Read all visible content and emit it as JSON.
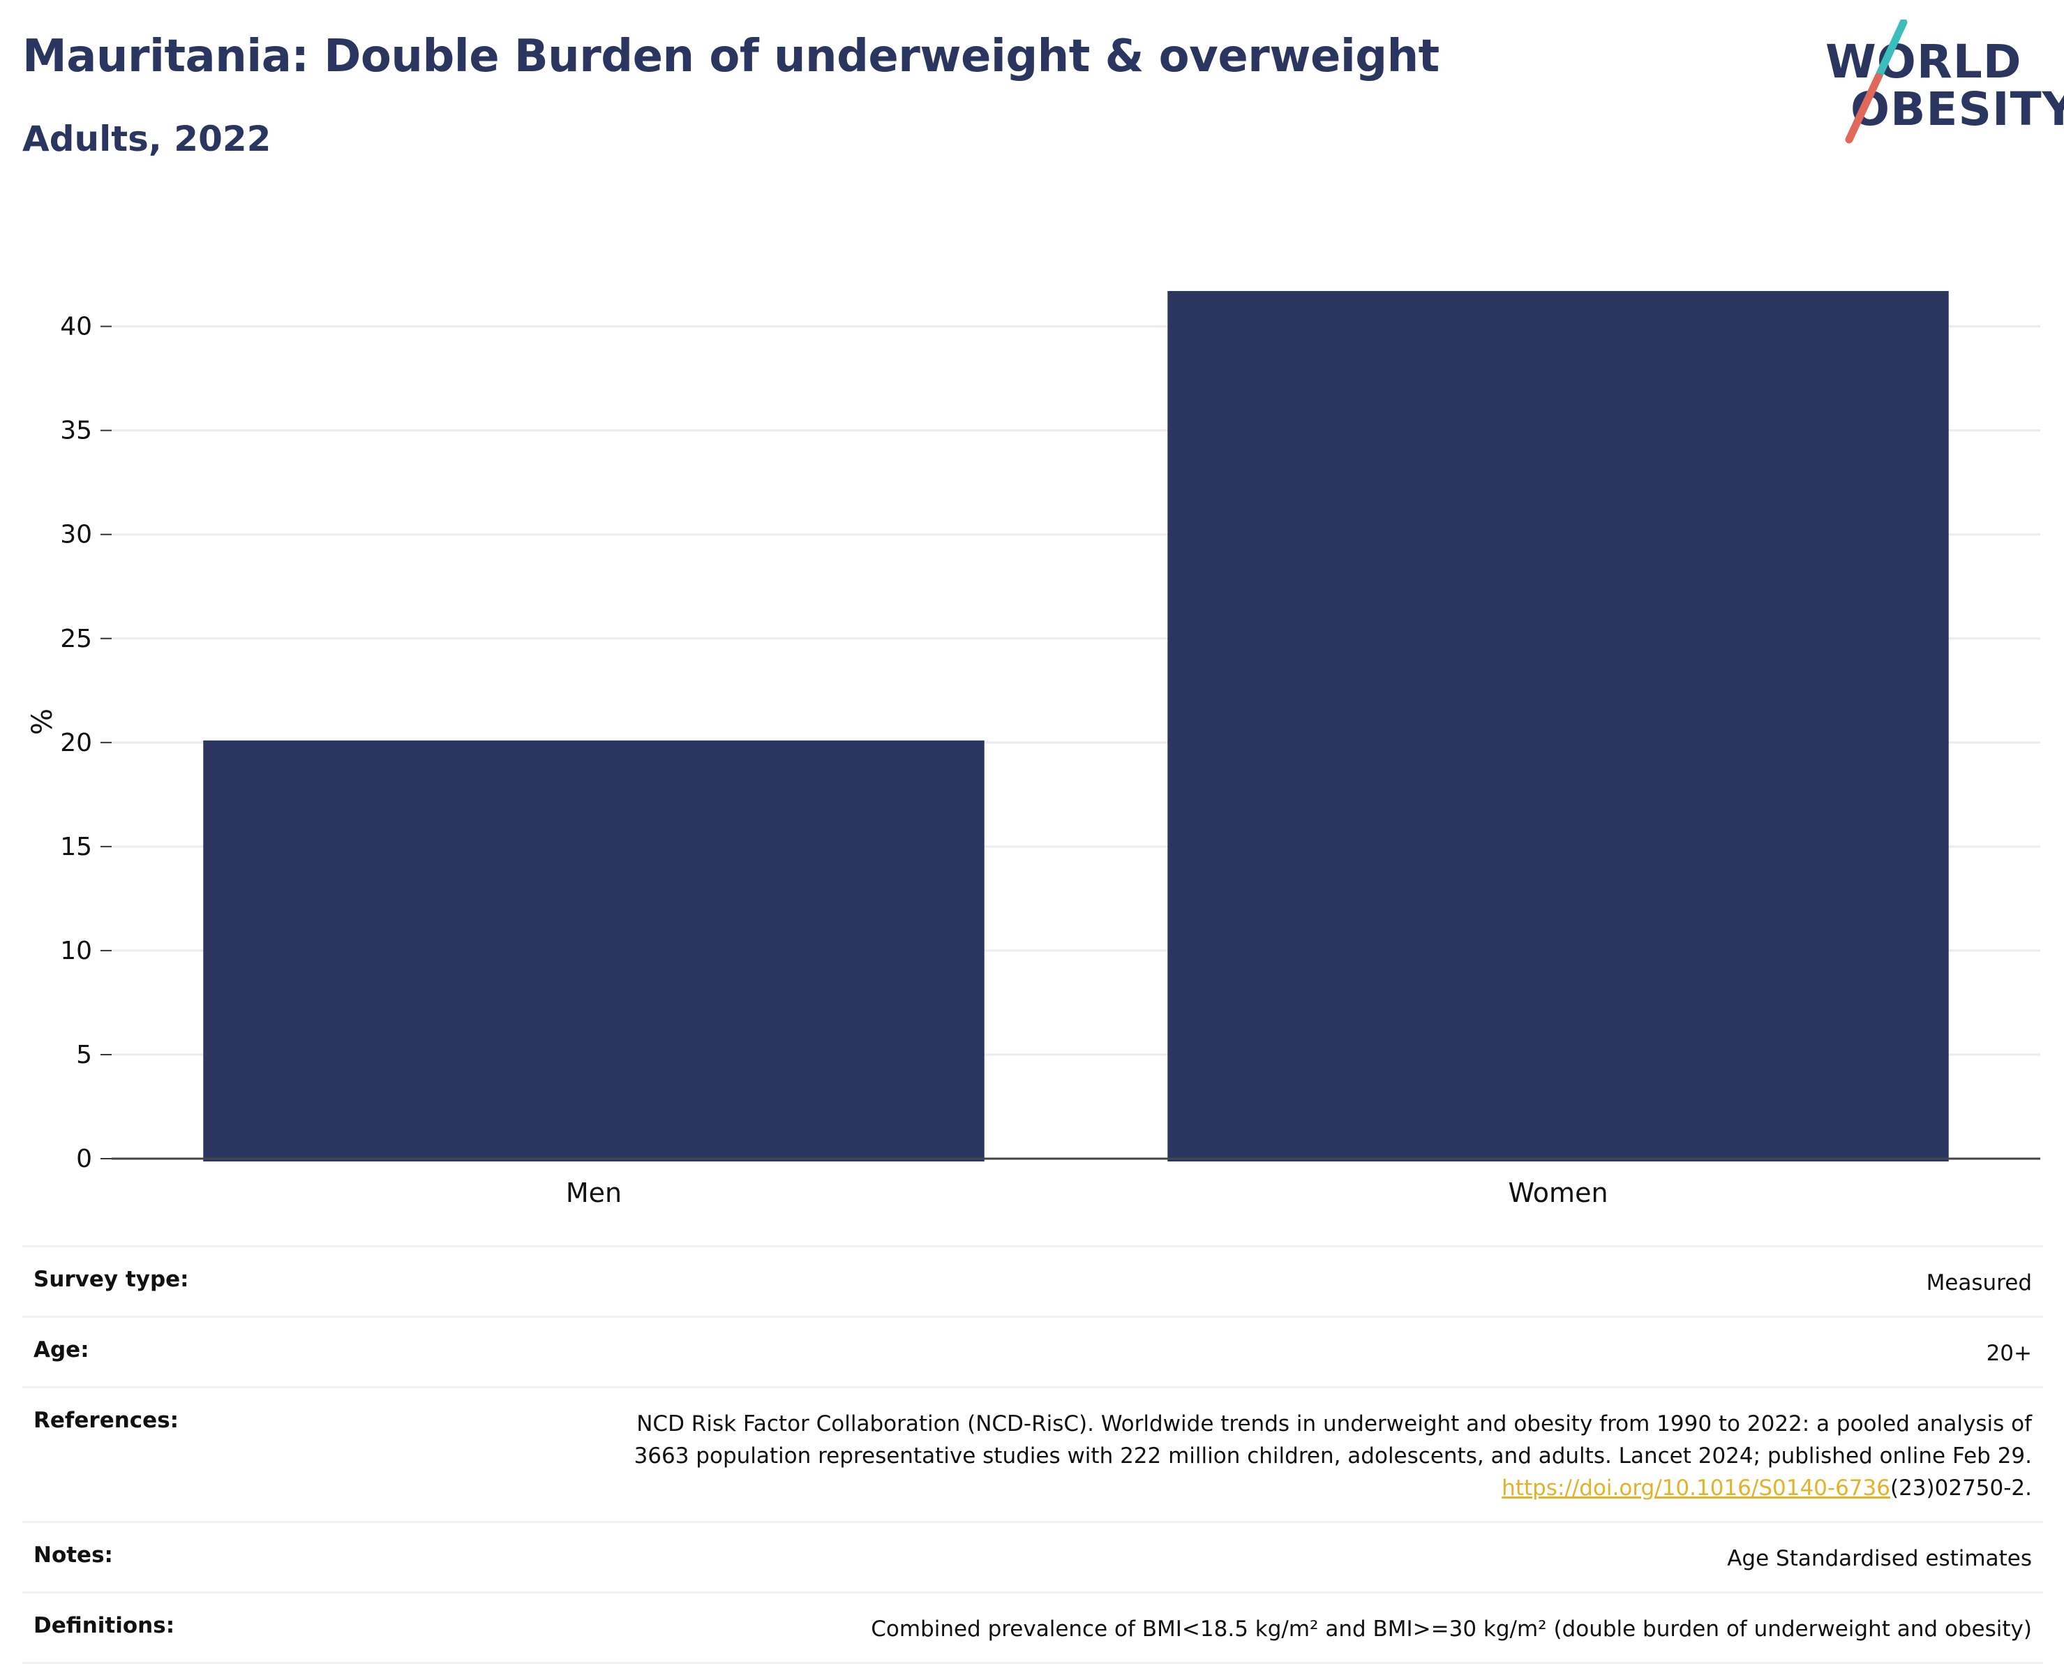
{
  "header": {
    "title": "Mauritania: Double Burden of underweight & overweight",
    "subtitle": "Adults, 2022"
  },
  "logo": {
    "line1": "WORLD",
    "line2": "OBESITY",
    "colors": {
      "text": "#2a365f",
      "slash_top": "#3bbdbd",
      "slash_bottom": "#e06a5a"
    }
  },
  "chart_data": {
    "type": "bar",
    "categories": [
      "Men",
      "Women"
    ],
    "values": [
      20.1,
      41.7
    ],
    "ylabel": "%",
    "ylim": [
      0,
      42
    ],
    "yticks": [
      0,
      5,
      10,
      15,
      20,
      25,
      30,
      35,
      40
    ],
    "grid": true,
    "bar_color": "#2a365f"
  },
  "meta": {
    "survey_type_label": "Survey type:",
    "survey_type_value": "Measured",
    "age_label": "Age:",
    "age_value": "20+",
    "references_label": "References:",
    "references_line1": "NCD Risk Factor Collaboration (NCD-RisC). Worldwide trends in underweight and obesity from 1990 to 2022: a pooled analysis of",
    "references_line2": "3663 population representative studies with 222 million children, adolescents, and adults. Lancet 2024; published online Feb 29.",
    "references_link": "https://doi.org/10.1016/S0140-6736",
    "references_suffix": "(23)02750-2.",
    "notes_label": "Notes:",
    "notes_value": "Age Standardised estimates",
    "definitions_label": "Definitions:",
    "definitions_value": "Combined prevalence of BMI<18.5 kg/m² and BMI>=30 kg/m² (double burden of underweight and obesity)"
  }
}
